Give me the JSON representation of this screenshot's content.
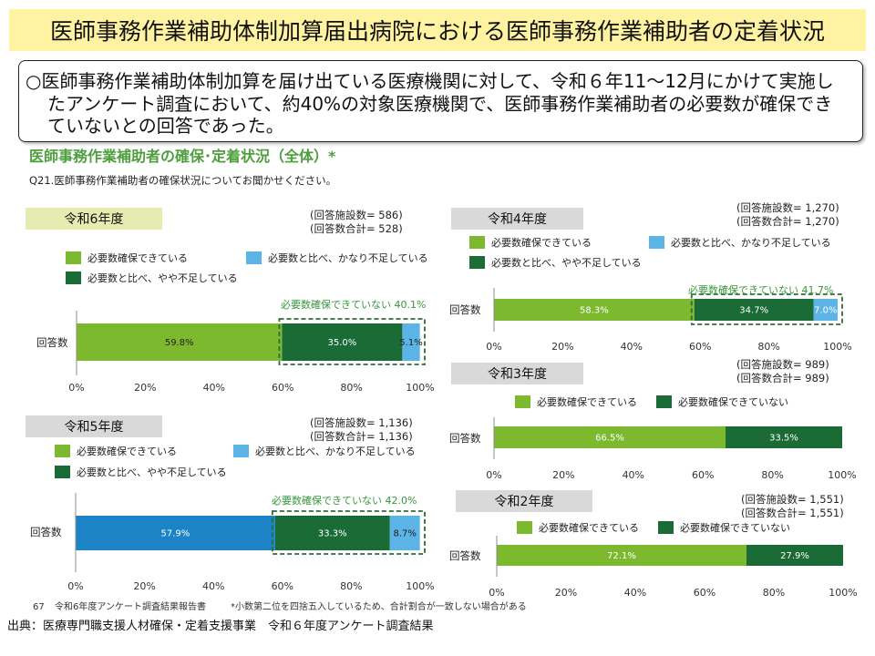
{
  "title": "医師事務作業補助体制加算届出病院における医師事務作業補助者の定着状況",
  "summary": [
    "○医師事務作業補助体制加算を届け出ている医療機関に対して、令和６年11～12月にかけて実施し",
    "たアンケート調査において、約40%の対象医療機関で、医師事務作業補助者の必要数が確保でき",
    "ていないとの回答であった。"
  ],
  "section_title": "医師事務作業補助者の確保･定着状況（全体）*",
  "question": "Q21.医師事務作業補助者の確保状況についてお聞かせください。",
  "colors": {
    "title_banner": "#FFF3A2",
    "section_title": "#4E9F3D",
    "current_year_label": "#E6EBAF",
    "past_year_label": "#D9D9D9",
    "annotation": "#37993C",
    "highlight_box": "#2E6B3A"
  },
  "chart_data": [
    {
      "type": "bar",
      "horizontal": true,
      "stacked": true,
      "title": "令和6年度",
      "facilities": "(回答施設数= 586)",
      "responses": "(回答数合計= 528)",
      "categories": [
        "回答数"
      ],
      "series": [
        {
          "name": "必要数確保できている",
          "values": [
            59.8
          ],
          "color": "#7DB92F"
        },
        {
          "name": "必要数と比べ、やや不足している",
          "values": [
            35.0
          ],
          "color": "#1B6B37"
        },
        {
          "name": "必要数と比べ、かなり不足している",
          "values": [
            5.1
          ],
          "color": "#5BB4E5"
        }
      ],
      "annotation": "必要数確保できていない 40.1%",
      "xlim": [
        0,
        100
      ],
      "x_ticks": [
        "0%",
        "20%",
        "40%",
        "60%",
        "80%",
        "100%"
      ],
      "legend_position": "top",
      "grid": false
    },
    {
      "type": "bar",
      "horizontal": true,
      "stacked": true,
      "title": "令和5年度",
      "facilities": "(回答施設数= 1,136)",
      "responses": "(回答数合計= 1,136)",
      "categories": [
        "回答数"
      ],
      "series": [
        {
          "name": "必要数確保できている",
          "values": [
            57.9
          ],
          "color": "#7DB92F",
          "bar_color": "#1C84C6"
        },
        {
          "name": "必要数と比べ、やや不足している",
          "values": [
            33.3
          ],
          "color": "#1B6B37"
        },
        {
          "name": "必要数と比べ、かなり不足している",
          "values": [
            8.7
          ],
          "color": "#5BB4E5"
        }
      ],
      "annotation": "必要数確保できていない 42.0%",
      "xlim": [
        0,
        100
      ],
      "x_ticks": [
        "0%",
        "20%",
        "40%",
        "60%",
        "80%",
        "100%"
      ],
      "legend_position": "top",
      "grid": false
    },
    {
      "type": "bar",
      "horizontal": true,
      "stacked": true,
      "title": "令和4年度",
      "facilities": "(回答施設数= 1,270)",
      "responses": "(回答数合計= 1,270)",
      "categories": [
        "回答数"
      ],
      "series": [
        {
          "name": "必要数確保できている",
          "values": [
            58.3
          ],
          "color": "#7DB92F"
        },
        {
          "name": "必要数と比べ、やや不足している",
          "values": [
            34.7
          ],
          "color": "#1B6B37"
        },
        {
          "name": "必要数と比べ、かなり不足している",
          "values": [
            7.0
          ],
          "color": "#5BB4E5"
        }
      ],
      "annotation": "必要数確保できていない 41.7%",
      "xlim": [
        0,
        100
      ],
      "x_ticks": [
        "0%",
        "20%",
        "40%",
        "60%",
        "80%",
        "100%"
      ],
      "legend_position": "top",
      "grid": false
    },
    {
      "type": "bar",
      "horizontal": true,
      "stacked": true,
      "title": "令和3年度",
      "facilities": "(回答施設数= 989)",
      "responses": "(回答数合計= 989)",
      "categories": [
        "回答数"
      ],
      "series": [
        {
          "name": "必要数確保できている",
          "values": [
            66.5
          ],
          "color": "#7DB92F"
        },
        {
          "name": "必要数確保できていない",
          "values": [
            33.5
          ],
          "color": "#1B6B37"
        }
      ],
      "xlim": [
        0,
        100
      ],
      "x_ticks": [
        "0%",
        "20%",
        "40%",
        "60%",
        "80%",
        "100%"
      ],
      "legend_position": "top",
      "grid": false
    },
    {
      "type": "bar",
      "horizontal": true,
      "stacked": true,
      "title": "令和2年度",
      "facilities": "(回答施設数= 1,551)",
      "responses": "(回答数合計= 1,551)",
      "categories": [
        "回答数"
      ],
      "series": [
        {
          "name": "必要数確保できている",
          "values": [
            72.1
          ],
          "color": "#7DB92F"
        },
        {
          "name": "必要数確保できていない",
          "values": [
            27.9
          ],
          "color": "#1B6B37"
        }
      ],
      "xlim": [
        0,
        100
      ],
      "x_ticks": [
        "0%",
        "20%",
        "40%",
        "60%",
        "80%",
        "100%"
      ],
      "legend_position": "top",
      "grid": false
    }
  ],
  "footnote": {
    "page": "67",
    "report": "令和6年度アンケート調査結果報告書",
    "note": "*小数第二位を四捨五入しているため、合計割合が一致しない場合がある"
  },
  "source": "出典：医療専門職支援人材確保・定着支援事業　令和６年度アンケート調査結果"
}
